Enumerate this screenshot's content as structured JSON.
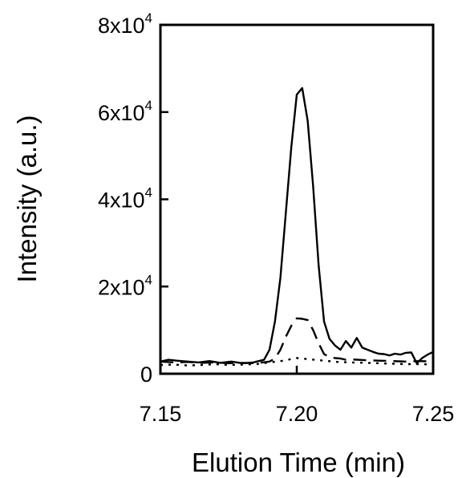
{
  "chart_data": {
    "type": "line",
    "title": "",
    "xlabel": "Elution Time (min)",
    "ylabel": "Intensity (a.u.)",
    "xlim": [
      7.15,
      7.25
    ],
    "ylim": [
      0,
      80000
    ],
    "x_ticks": [
      {
        "value": 7.15,
        "label": "7.15"
      },
      {
        "value": 7.2,
        "label": "7.20"
      },
      {
        "value": 7.25,
        "label": "7.25"
      }
    ],
    "y_ticks": [
      {
        "value": 0,
        "base": "0",
        "exp": ""
      },
      {
        "value": 20000,
        "base": "2x10",
        "exp": "4"
      },
      {
        "value": 40000,
        "base": "4x10",
        "exp": "4"
      },
      {
        "value": 60000,
        "base": "6x10",
        "exp": "4"
      },
      {
        "value": 80000,
        "base": "8x10",
        "exp": "4"
      }
    ],
    "legend": "none",
    "grid": false,
    "series": [
      {
        "style": "solid",
        "x": [
          7.15,
          7.153,
          7.156,
          7.16,
          7.164,
          7.168,
          7.172,
          7.176,
          7.18,
          7.184,
          7.188,
          7.19,
          7.192,
          7.194,
          7.196,
          7.198,
          7.2,
          7.202,
          7.204,
          7.206,
          7.208,
          7.21,
          7.212,
          7.214,
          7.216,
          7.218,
          7.22,
          7.222,
          7.224,
          7.226,
          7.228,
          7.23,
          7.232,
          7.234,
          7.236,
          7.238,
          7.24,
          7.242,
          7.244,
          7.246,
          7.248,
          7.25
        ],
        "y": [
          2800,
          3200,
          3000,
          2800,
          2600,
          2900,
          2500,
          2800,
          2400,
          2600,
          3200,
          5500,
          12000,
          22000,
          37000,
          52000,
          64000,
          65500,
          58000,
          43000,
          25000,
          12000,
          8000,
          6500,
          5500,
          7500,
          6000,
          8200,
          6000,
          5500,
          5000,
          4600,
          4500,
          4200,
          4600,
          4400,
          4800,
          4900,
          2400,
          3600,
          4400,
          5000
        ]
      },
      {
        "style": "dashed",
        "x": [
          7.15,
          7.155,
          7.16,
          7.165,
          7.17,
          7.175,
          7.18,
          7.185,
          7.19,
          7.192,
          7.194,
          7.196,
          7.198,
          7.2,
          7.202,
          7.204,
          7.206,
          7.208,
          7.21,
          7.212,
          7.214,
          7.216,
          7.218,
          7.22,
          7.225,
          7.23,
          7.235,
          7.24,
          7.245,
          7.25
        ],
        "y": [
          2800,
          2600,
          2700,
          2500,
          2600,
          2400,
          2500,
          2400,
          2800,
          3500,
          5500,
          8500,
          11000,
          12700,
          12600,
          12300,
          10000,
          7000,
          4500,
          3800,
          3600,
          3500,
          3200,
          3300,
          3100,
          3000,
          2900,
          2800,
          2900,
          2800
        ]
      },
      {
        "style": "dotted",
        "x": [
          7.15,
          7.155,
          7.16,
          7.165,
          7.17,
          7.175,
          7.18,
          7.185,
          7.19,
          7.195,
          7.2,
          7.205,
          7.21,
          7.215,
          7.22,
          7.225,
          7.23,
          7.235,
          7.24,
          7.245,
          7.25
        ],
        "y": [
          2000,
          2100,
          1900,
          2000,
          2200,
          2000,
          2100,
          2200,
          2600,
          3000,
          3600,
          3300,
          3000,
          2700,
          2600,
          2500,
          2400,
          2300,
          2200,
          2200,
          2100
        ]
      }
    ]
  }
}
